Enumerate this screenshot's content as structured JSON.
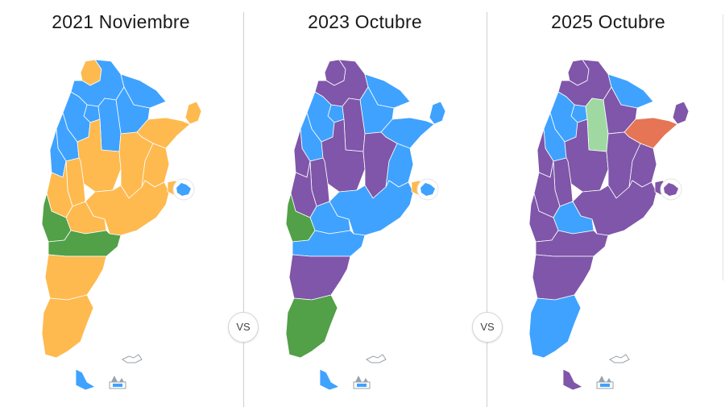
{
  "colors": {
    "blue": "#3fa2ff",
    "yellow": "#feba4f",
    "green": "#52a047",
    "purple": "#7f56a9",
    "lightgreen": "#9fd9a1",
    "orange": "#e57554",
    "border": "#ffffff",
    "icon_gray": "#9aa1a8"
  },
  "compare_label": "VS",
  "maps": [
    {
      "title": "2021 Noviembre",
      "provinces": {
        "jujuy": "yellow",
        "salta": "blue",
        "formosa": "blue",
        "chaco": "blue",
        "misiones": "yellow",
        "corrientes": "yellow",
        "tucuman": "blue",
        "santiago": "blue",
        "catamarca": "blue",
        "larioja": "blue",
        "sanjuan": "blue",
        "cordoba": "yellow",
        "santafe": "yellow",
        "entrerios": "yellow",
        "sanluis": "yellow",
        "mendoza": "yellow",
        "buenosaires": "yellow",
        "caba": "yellow",
        "lapampa": "yellow",
        "neuquen": "green",
        "rionegro": "green",
        "chubut": "yellow",
        "santacruz": "yellow",
        "tierradelfuego": "blue"
      }
    },
    {
      "title": "2023 Octubre",
      "provinces": {
        "jujuy": "purple",
        "salta": "purple",
        "formosa": "blue",
        "chaco": "blue",
        "misiones": "blue",
        "corrientes": "blue",
        "tucuman": "blue",
        "santiago": "purple",
        "catamarca": "blue",
        "larioja": "blue",
        "sanjuan": "purple",
        "cordoba": "purple",
        "santafe": "purple",
        "entrerios": "blue",
        "sanluis": "purple",
        "mendoza": "purple",
        "buenosaires": "blue",
        "caba": "yellow",
        "lapampa": "blue",
        "neuquen": "green",
        "rionegro": "blue",
        "chubut": "purple",
        "santacruz": "green",
        "tierradelfuego": "blue"
      }
    },
    {
      "title": "2025 Octubre",
      "provinces": {
        "jujuy": "purple",
        "salta": "purple",
        "formosa": "blue",
        "chaco": "purple",
        "misiones": "purple",
        "corrientes": "orange",
        "tucuman": "blue",
        "santiago": "lightgreen",
        "catamarca": "blue",
        "larioja": "blue",
        "sanjuan": "purple",
        "cordoba": "purple",
        "santafe": "purple",
        "entrerios": "purple",
        "sanluis": "purple",
        "mendoza": "purple",
        "buenosaires": "purple",
        "caba": "purple",
        "lapampa": "blue",
        "neuquen": "purple",
        "rionegro": "purple",
        "chubut": "purple",
        "santacruz": "blue",
        "tierradelfuego": "purple"
      }
    }
  ]
}
